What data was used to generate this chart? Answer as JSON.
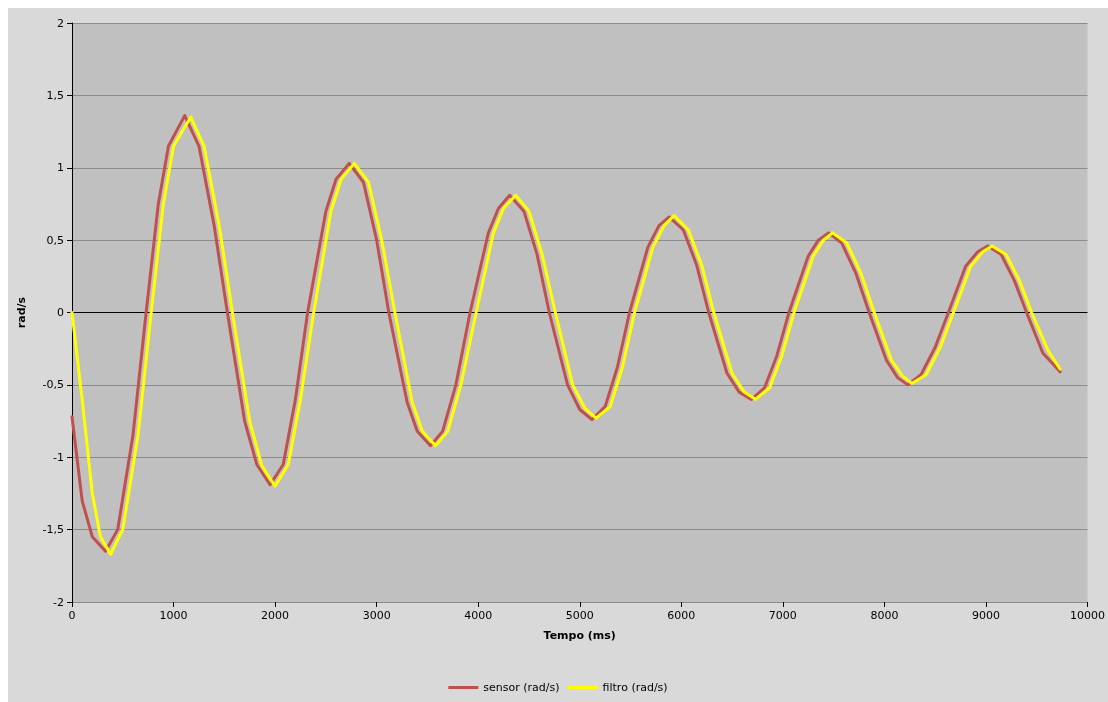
{
  "chart_data": {
    "type": "line",
    "xlabel": "Tempo (ms)",
    "ylabel": "rad/s",
    "xlim": [
      0,
      10000
    ],
    "xticks": [
      0,
      1000,
      2000,
      3000,
      4000,
      5000,
      6000,
      7000,
      8000,
      9000,
      10000
    ],
    "ylim": [
      -2,
      2
    ],
    "yticks": [
      -2,
      {
        "value": -1.5,
        "label": "-1,5"
      },
      -1,
      {
        "value": -0.5,
        "label": "-0,5"
      },
      0,
      {
        "value": 0.5,
        "label": "0,5"
      },
      1,
      {
        "value": 1.5,
        "label": "1,5"
      },
      2
    ],
    "grid": "y",
    "legend": "bottom",
    "marker": "none",
    "line_style": "solid",
    "series": [
      {
        "name": "sensor (rad/s)",
        "color": "#c0504d",
        "x": [
          0,
          100,
          200,
          330,
          450,
          600,
          730,
          850,
          950,
          1110,
          1250,
          1400,
          1530,
          1700,
          1820,
          1950,
          2080,
          2200,
          2320,
          2500,
          2600,
          2730,
          2870,
          3000,
          3120,
          3300,
          3400,
          3530,
          3650,
          3780,
          3920,
          4100,
          4200,
          4310,
          4450,
          4580,
          4700,
          4880,
          5000,
          5120,
          5250,
          5370,
          5490,
          5670,
          5780,
          5880,
          6020,
          6150,
          6270,
          6450,
          6570,
          6690,
          6820,
          6940,
          7060,
          7250,
          7350,
          7450,
          7580,
          7720,
          7850,
          8020,
          8130,
          8230,
          8360,
          8500,
          8630,
          8800,
          8920,
          9020,
          9150,
          9280,
          9400,
          9560,
          9730
        ],
        "values": [
          -0.72,
          -1.3,
          -1.55,
          -1.65,
          -1.5,
          -0.85,
          0,
          0.75,
          1.15,
          1.36,
          1.15,
          0.6,
          0,
          -0.75,
          -1.05,
          -1.19,
          -1.05,
          -0.6,
          0,
          0.7,
          0.92,
          1.03,
          0.9,
          0.5,
          0,
          -0.62,
          -0.82,
          -0.92,
          -0.82,
          -0.5,
          0,
          0.55,
          0.72,
          0.81,
          0.7,
          0.4,
          0,
          -0.5,
          -0.67,
          -0.74,
          -0.65,
          -0.38,
          0,
          0.45,
          0.6,
          0.66,
          0.57,
          0.33,
          0,
          -0.42,
          -0.55,
          -0.6,
          -0.52,
          -0.3,
          0,
          0.39,
          0.5,
          0.55,
          0.48,
          0.27,
          0,
          -0.33,
          -0.45,
          -0.5,
          -0.43,
          -0.24,
          0,
          0.32,
          0.42,
          0.46,
          0.4,
          0.22,
          0,
          -0.28,
          -0.41
        ]
      },
      {
        "name": "filtro (rad/s)",
        "color": "#ffff00",
        "x": [
          0,
          100,
          200,
          280,
          380,
          500,
          650,
          780,
          900,
          1000,
          1170,
          1300,
          1450,
          1580,
          1750,
          1870,
          2000,
          2130,
          2250,
          2380,
          2550,
          2650,
          2780,
          2920,
          3050,
          3180,
          3350,
          3450,
          3580,
          3700,
          3830,
          3980,
          4150,
          4250,
          4370,
          4500,
          4630,
          4760,
          4930,
          5050,
          5160,
          5300,
          5420,
          5540,
          5720,
          5830,
          5930,
          6070,
          6200,
          6320,
          6500,
          6620,
          6730,
          6870,
          6990,
          7110,
          7300,
          7400,
          7490,
          7630,
          7770,
          7900,
          8070,
          8180,
          8270,
          8410,
          8550,
          8680,
          8850,
          8970,
          9060,
          9200,
          9330,
          9450,
          9610,
          9730
        ],
        "values": [
          0,
          -0.6,
          -1.25,
          -1.55,
          -1.67,
          -1.5,
          -0.85,
          0,
          0.75,
          1.15,
          1.35,
          1.15,
          0.6,
          0,
          -0.75,
          -1.06,
          -1.2,
          -1.05,
          -0.6,
          0,
          0.7,
          0.92,
          1.03,
          0.9,
          0.5,
          0,
          -0.62,
          -0.82,
          -0.92,
          -0.82,
          -0.5,
          0,
          0.55,
          0.72,
          0.81,
          0.7,
          0.4,
          0,
          -0.5,
          -0.66,
          -0.73,
          -0.65,
          -0.38,
          0,
          0.45,
          0.6,
          0.67,
          0.57,
          0.33,
          0,
          -0.42,
          -0.55,
          -0.6,
          -0.52,
          -0.3,
          0,
          0.39,
          0.5,
          0.55,
          0.48,
          0.27,
          0,
          -0.33,
          -0.44,
          -0.49,
          -0.43,
          -0.24,
          0,
          0.32,
          0.42,
          0.46,
          0.4,
          0.22,
          0,
          -0.26,
          -0.39
        ]
      }
    ]
  }
}
